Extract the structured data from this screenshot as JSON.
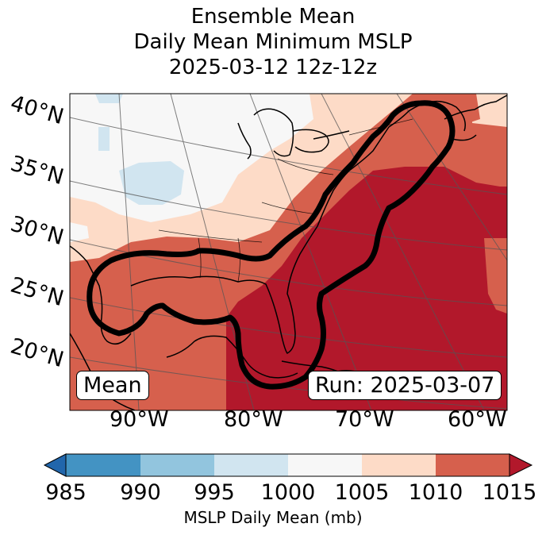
{
  "title": {
    "line1": "Ensemble Mean",
    "line2": "Daily Mean Minimum MSLP",
    "line3": "2025-03-12 12z-12z"
  },
  "map": {
    "lat_labels": [
      "40°N",
      "35°N",
      "30°N",
      "25°N",
      "20°N"
    ],
    "lon_labels": [
      "90°W",
      "80°W",
      "70°W",
      "60°W"
    ],
    "mean_label": "Mean",
    "run_label": "Run: 2025-03-07",
    "contour_color": "#000000",
    "features": [
      "coastline",
      "state-borders",
      "lat-lon-gridlines",
      "probability-contour"
    ]
  },
  "colorbar": {
    "ticks": [
      "985",
      "990",
      "995",
      "1000",
      "1005",
      "1010",
      "1015"
    ],
    "label": "MSLP Daily Mean (mb)",
    "colors": [
      "#2166ac",
      "#4393c3",
      "#92c5de",
      "#d1e5f0",
      "#f7f7f7",
      "#fddbc7",
      "#d6604d",
      "#b2182b"
    ]
  }
}
